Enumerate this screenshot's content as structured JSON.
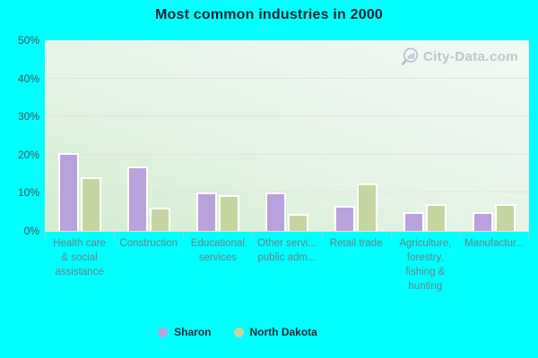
{
  "title": "Most common industries in 2000",
  "watermark": {
    "text": "City-Data.com"
  },
  "colors": {
    "background": "#00ffff",
    "plot_gradient_top": "#f2f9f4",
    "plot_gradient_bottom": "#d3eecf",
    "gridline": "#e9dee8",
    "sharon_bar": "#b9a2dc",
    "north_dakota_bar": "#c5d5a0",
    "axis_text": "#47525c",
    "category_text": "#6e7f8d",
    "watermark_text": "#b3bcc2"
  },
  "y_axis": {
    "ticks": [
      {
        "label": "50%",
        "value": 50
      },
      {
        "label": "40%",
        "value": 40
      },
      {
        "label": "30%",
        "value": 30
      },
      {
        "label": "20%",
        "value": 20
      },
      {
        "label": "10%",
        "value": 10
      },
      {
        "label": "0%",
        "value": 0
      }
    ]
  },
  "chart_data": {
    "type": "bar",
    "title": "Most common industries in 2000",
    "categories": [
      "Health care & social assistance",
      "Construction",
      "Educational services",
      "Other servi... public adm...",
      "Retail trade",
      "Agriculture, forestry, fishing & hunting",
      "Manufactur..."
    ],
    "category_label_lines": [
      [
        "Health care",
        "& social",
        "assistance"
      ],
      [
        "Construction"
      ],
      [
        "Educational",
        "services"
      ],
      [
        "Other servi...",
        "public adm..."
      ],
      [
        "Retail trade"
      ],
      [
        "Agriculture,",
        "forestry,",
        "fishing &",
        "hunting"
      ],
      [
        "Manufactur..."
      ]
    ],
    "series": [
      {
        "name": "Sharon",
        "color": "#b9a2dc",
        "values": [
          20.5,
          17,
          10,
          10,
          6.5,
          5,
          5
        ]
      },
      {
        "name": "North Dakota",
        "color": "#c5d5a0",
        "values": [
          14,
          6,
          9.5,
          4.5,
          12.5,
          7,
          7
        ]
      }
    ],
    "xlabel": "",
    "ylabel": "",
    "ylim": [
      0,
      50
    ],
    "grid": true,
    "gridlines_at": [
      10,
      20,
      30,
      40
    ],
    "legend_position": "bottom"
  },
  "legend": [
    {
      "label": "Sharon",
      "color": "#b9a2dc"
    },
    {
      "label": "North Dakota",
      "color": "#c5d5a0"
    }
  ]
}
